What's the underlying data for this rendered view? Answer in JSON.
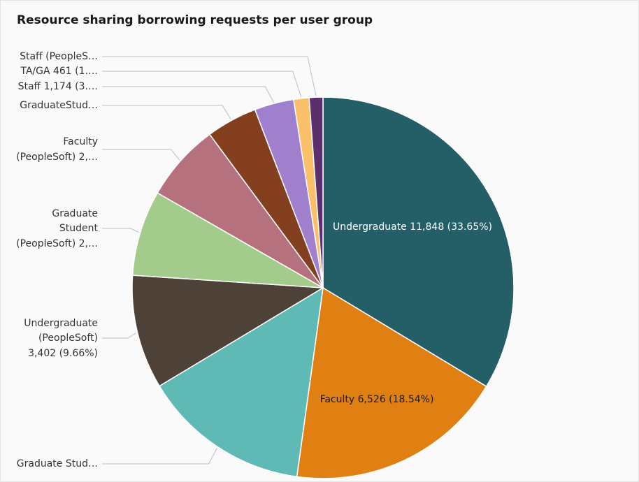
{
  "chart_data": {
    "type": "pie",
    "title": "Resource sharing borrowing requests per user group",
    "values": [
      11848,
      6526,
      5000,
      3402,
      2550,
      2320,
      1520,
      1174,
      461,
      408
    ],
    "value_labels": [
      "Undergraduate 11,848 (33.65%)",
      "Faculty 6,526 (18.54%)",
      "Graduate Stud…",
      [
        "Undergraduate",
        "(PeopleSoft)",
        "3,402 (9.66%)"
      ],
      [
        "Graduate",
        "Student",
        "(PeopleSoft) 2,…"
      ],
      [
        "Faculty",
        "(PeopleSoft) 2,…"
      ],
      "GraduateStud…",
      "Staff 1,174 (3.…",
      "TA/GA 461 (1.…",
      "Staff (PeopleS…"
    ],
    "colors": [
      "#245e66",
      "#e07f12",
      "#5fbab6",
      "#4e4238",
      "#a3cb8b",
      "#b5727e",
      "#843f1f",
      "#a080cc",
      "#fcc06a",
      "#5b2f6b"
    ]
  }
}
